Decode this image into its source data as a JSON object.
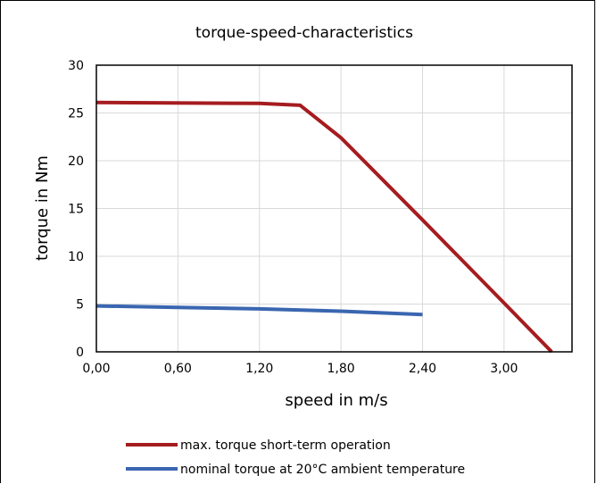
{
  "chart_data": {
    "type": "line",
    "title": "torque-speed-characteristics",
    "xlabel": "speed in m/s",
    "ylabel": "torque in Nm",
    "xlim": [
      0,
      3.5
    ],
    "ylim": [
      0,
      30
    ],
    "x_ticks": [
      0,
      0.6,
      1.2,
      1.8,
      2.4,
      3.0
    ],
    "x_tick_labels": [
      "0,00",
      "0,60",
      "1,20",
      "1,80",
      "2,40",
      "3,00"
    ],
    "y_ticks": [
      0,
      5,
      10,
      15,
      20,
      25,
      30
    ],
    "y_tick_labels": [
      "0",
      "5",
      "10",
      "15",
      "20",
      "25",
      "30"
    ],
    "grid": true,
    "legend_position": "bottom",
    "series": [
      {
        "name": "max. torque short-term operation",
        "color": "#a51c1f",
        "points": [
          {
            "x": 0,
            "y": 26.1
          },
          {
            "x": 1.2,
            "y": 26.0
          },
          {
            "x": 1.5,
            "y": 25.8
          },
          {
            "x": 1.8,
            "y": 22.4
          },
          {
            "x": 2.4,
            "y": 13.8
          },
          {
            "x": 3.0,
            "y": 5.1
          },
          {
            "x": 3.35,
            "y": 0
          }
        ]
      },
      {
        "name": "nominal torque at 20°C ambient temperature",
        "color": "#3a66b0",
        "points": [
          {
            "x": 0,
            "y": 4.8
          },
          {
            "x": 0.6,
            "y": 4.65
          },
          {
            "x": 1.2,
            "y": 4.5
          },
          {
            "x": 1.8,
            "y": 4.25
          },
          {
            "x": 2.4,
            "y": 3.9
          }
        ]
      }
    ]
  }
}
